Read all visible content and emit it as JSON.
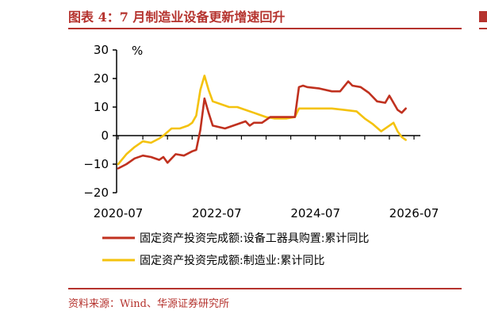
{
  "header": {
    "title": "图表 4：7 月制造业设备更新增速回升",
    "source": "资料来源：Wind、华源证券研究所"
  },
  "colors": {
    "accent": "#b5332e",
    "series_equipment": "#c0311f",
    "series_manufacturing": "#f4c20d"
  },
  "chart_data": {
    "type": "line",
    "unit_label": "%",
    "ylim": [
      -20,
      30
    ],
    "yticks": [
      30,
      20,
      10,
      0,
      -10,
      -20
    ],
    "ytick_labels": [
      "30",
      "20",
      "10",
      "0",
      "−10",
      "−20"
    ],
    "xlim": [
      "2020-07",
      "2026-07"
    ],
    "xticks": [
      "2020-07",
      "2022-07",
      "2024-07",
      "2026-07"
    ],
    "grid": false,
    "legend_position": "bottom",
    "series": [
      {
        "name": "固定资产投资完成额:设备工器具购置:累计同比",
        "color": "#c0311f",
        "points": [
          [
            "2020-07",
            -11.5
          ],
          [
            "2020-09",
            -10.0
          ],
          [
            "2020-11",
            -8.0
          ],
          [
            "2021-01",
            -7.0
          ],
          [
            "2021-03",
            -7.5
          ],
          [
            "2021-05",
            -8.5
          ],
          [
            "2021-06",
            -7.5
          ],
          [
            "2021-07",
            -9.5
          ],
          [
            "2021-09",
            -6.5
          ],
          [
            "2021-11",
            -7.0
          ],
          [
            "2022-01",
            -5.5
          ],
          [
            "2022-02",
            -5.0
          ],
          [
            "2022-03",
            2.0
          ],
          [
            "2022-04",
            13.0
          ],
          [
            "2022-05",
            8.0
          ],
          [
            "2022-06",
            3.5
          ],
          [
            "2022-09",
            2.5
          ],
          [
            "2022-12",
            4.0
          ],
          [
            "2023-02",
            5.0
          ],
          [
            "2023-03",
            3.5
          ],
          [
            "2023-04",
            4.5
          ],
          [
            "2023-06",
            4.5
          ],
          [
            "2023-08",
            6.5
          ],
          [
            "2023-11",
            6.5
          ],
          [
            "2024-02",
            6.5
          ],
          [
            "2024-03",
            17.0
          ],
          [
            "2024-04",
            17.5
          ],
          [
            "2024-05",
            17.0
          ],
          [
            "2024-08",
            16.5
          ],
          [
            "2024-11",
            15.5
          ],
          [
            "2025-01",
            15.5
          ],
          [
            "2025-03",
            19.0
          ],
          [
            "2025-04",
            17.5
          ],
          [
            "2025-06",
            17.0
          ],
          [
            "2025-08",
            15.0
          ],
          [
            "2025-10",
            12.0
          ],
          [
            "2025-12",
            11.5
          ],
          [
            "2026-01",
            14.0
          ],
          [
            "2026-03",
            9.0
          ],
          [
            "2026-04",
            8.0
          ],
          [
            "2026-05",
            9.5
          ]
        ]
      },
      {
        "name": "固定资产投资完成额:制造业:累计同比",
        "color": "#f4c20d",
        "points": [
          [
            "2020-07",
            -10.0
          ],
          [
            "2020-09",
            -6.5
          ],
          [
            "2020-11",
            -4.0
          ],
          [
            "2021-01",
            -2.0
          ],
          [
            "2021-03",
            -2.5
          ],
          [
            "2021-05",
            -1.0
          ],
          [
            "2021-06",
            0.0
          ],
          [
            "2021-08",
            2.5
          ],
          [
            "2021-10",
            2.5
          ],
          [
            "2021-12",
            3.5
          ],
          [
            "2022-01",
            4.5
          ],
          [
            "2022-02",
            7.0
          ],
          [
            "2022-03",
            16.0
          ],
          [
            "2022-04",
            21.0
          ],
          [
            "2022-05",
            16.0
          ],
          [
            "2022-06",
            12.0
          ],
          [
            "2022-08",
            11.0
          ],
          [
            "2022-10",
            10.0
          ],
          [
            "2022-12",
            10.0
          ],
          [
            "2023-02",
            9.0
          ],
          [
            "2023-04",
            8.0
          ],
          [
            "2023-05",
            7.5
          ],
          [
            "2023-07",
            6.5
          ],
          [
            "2023-09",
            6.0
          ],
          [
            "2023-12",
            6.0
          ],
          [
            "2024-02",
            6.5
          ],
          [
            "2024-03",
            9.5
          ],
          [
            "2024-05",
            9.5
          ],
          [
            "2024-08",
            9.5
          ],
          [
            "2024-11",
            9.5
          ],
          [
            "2025-02",
            9.0
          ],
          [
            "2025-05",
            8.5
          ],
          [
            "2025-07",
            6.0
          ],
          [
            "2025-09",
            4.0
          ],
          [
            "2025-11",
            1.5
          ],
          [
            "2026-01",
            3.5
          ],
          [
            "2026-02",
            4.5
          ],
          [
            "2026-03",
            1.5
          ],
          [
            "2026-04",
            -0.5
          ],
          [
            "2026-05",
            -1.5
          ]
        ]
      }
    ]
  }
}
